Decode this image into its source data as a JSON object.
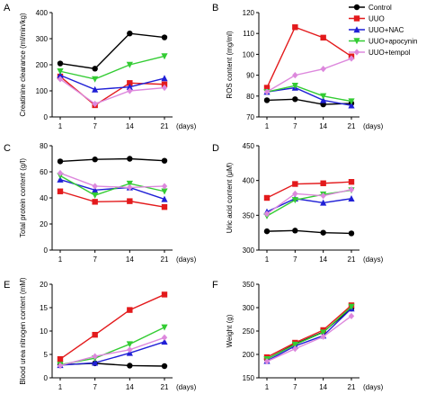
{
  "panel_letters": [
    "A",
    "B",
    "C",
    "D",
    "E",
    "F"
  ],
  "x_unit_label": "(days)",
  "legend": {
    "entries": [
      "Control",
      "UUO",
      "UUO+NAC",
      "UUO+apocynin",
      "UUO+tempol"
    ]
  },
  "series_styles": [
    {
      "name": "Control",
      "color": "#000000",
      "marker": "circle"
    },
    {
      "name": "UUO",
      "color": "#e31a1c",
      "marker": "square"
    },
    {
      "name": "UUO+NAC",
      "color": "#1f1fd6",
      "marker": "triangle-up"
    },
    {
      "name": "UUO+apocynin",
      "color": "#33cc33",
      "marker": "triangle-down"
    },
    {
      "name": "UUO+tempol",
      "color": "#dd88dd",
      "marker": "diamond"
    }
  ],
  "chart_data": [
    {
      "panel": "A",
      "type": "line",
      "x": [
        "1",
        "7",
        "14",
        "21"
      ],
      "ylabel": "Creatinine clearance (ml/min/kg)",
      "ylim": [
        0,
        400
      ],
      "yticks": [
        0,
        100,
        200,
        300,
        400
      ],
      "series": [
        {
          "name": "Control",
          "values": [
            205,
            185,
            320,
            305
          ]
        },
        {
          "name": "UUO",
          "values": [
            155,
            45,
            130,
            125
          ]
        },
        {
          "name": "UUO+NAC",
          "values": [
            160,
            105,
            115,
            148
          ]
        },
        {
          "name": "UUO+apocynin",
          "values": [
            175,
            145,
            200,
            233
          ]
        },
        {
          "name": "UUO+tempol",
          "values": [
            145,
            50,
            100,
            112
          ]
        }
      ]
    },
    {
      "panel": "B",
      "type": "line",
      "x": [
        "1",
        "7",
        "14",
        "21"
      ],
      "ylabel": "ROS content (mg/ml)",
      "ylim": [
        70,
        120
      ],
      "yticks": [
        70,
        80,
        90,
        100,
        110,
        120
      ],
      "series": [
        {
          "name": "Control",
          "values": [
            78,
            78.5,
            76,
            76.5
          ]
        },
        {
          "name": "UUO",
          "values": [
            84,
            113,
            108,
            99
          ]
        },
        {
          "name": "UUO+NAC",
          "values": [
            82,
            84,
            78,
            75.5
          ]
        },
        {
          "name": "UUO+apocynin",
          "values": [
            82,
            85,
            80,
            77.5
          ]
        },
        {
          "name": "UUO+tempol",
          "values": [
            82,
            90,
            93,
            98
          ]
        }
      ]
    },
    {
      "panel": "C",
      "type": "line",
      "x": [
        "1",
        "7",
        "14",
        "21"
      ],
      "ylabel": "Total protein content (g/l)",
      "ylim": [
        0,
        80
      ],
      "yticks": [
        0,
        20,
        40,
        60,
        80
      ],
      "series": [
        {
          "name": "Control",
          "values": [
            68,
            69.5,
            70,
            68.5
          ]
        },
        {
          "name": "UUO",
          "values": [
            45,
            37,
            37.5,
            33
          ]
        },
        {
          "name": "UUO+NAC",
          "values": [
            54,
            46,
            48,
            39
          ]
        },
        {
          "name": "UUO+apocynin",
          "values": [
            57,
            42,
            51,
            45
          ]
        },
        {
          "name": "UUO+tempol",
          "values": [
            59,
            49,
            48,
            49
          ]
        }
      ]
    },
    {
      "panel": "D",
      "type": "line",
      "x": [
        "1",
        "7",
        "14",
        "21"
      ],
      "ylabel": "Uric acid content (μM)",
      "ylim": [
        300,
        450
      ],
      "yticks": [
        300,
        350,
        400,
        450
      ],
      "series": [
        {
          "name": "Control",
          "values": [
            327,
            328,
            325,
            324
          ]
        },
        {
          "name": "UUO",
          "values": [
            375,
            395,
            396,
            398
          ]
        },
        {
          "name": "UUO+NAC",
          "values": [
            355,
            374,
            368,
            374
          ]
        },
        {
          "name": "UUO+apocynin",
          "values": [
            349,
            372,
            380,
            386
          ]
        },
        {
          "name": "UUO+tempol",
          "values": [
            352,
            381,
            378,
            387
          ]
        }
      ]
    },
    {
      "panel": "E",
      "type": "line",
      "x": [
        "1",
        "7",
        "14",
        "21"
      ],
      "ylabel": "Blood urea nitrogen content (mM)",
      "ylim": [
        0,
        20
      ],
      "yticks": [
        0,
        5,
        10,
        15,
        20
      ],
      "series": [
        {
          "name": "Control",
          "values": [
            2.8,
            3.1,
            2.6,
            2.5
          ]
        },
        {
          "name": "UUO",
          "values": [
            4.0,
            9.2,
            14.5,
            17.8
          ]
        },
        {
          "name": "UUO+NAC",
          "values": [
            2.7,
            3.2,
            5.3,
            7.7
          ]
        },
        {
          "name": "UUO+apocynin",
          "values": [
            2.8,
            4.2,
            7.2,
            10.8
          ]
        },
        {
          "name": "UUO+tempol",
          "values": [
            2.6,
            4.6,
            6.0,
            8.6
          ]
        }
      ]
    },
    {
      "panel": "F",
      "type": "line",
      "x": [
        "1",
        "7",
        "14",
        "21"
      ],
      "ylabel": "Weight (g)",
      "ylim": [
        150,
        350
      ],
      "yticks": [
        150,
        200,
        250,
        300,
        350
      ],
      "series": [
        {
          "name": "Control",
          "values": [
            190,
            222,
            248,
            298
          ]
        },
        {
          "name": "UUO",
          "values": [
            194,
            225,
            252,
            305
          ]
        },
        {
          "name": "UUO+NAC",
          "values": [
            186,
            218,
            240,
            298
          ]
        },
        {
          "name": "UUO+apocynin",
          "values": [
            190,
            221,
            247,
            302
          ]
        },
        {
          "name": "UUO+tempol",
          "values": [
            185,
            212,
            238,
            282
          ]
        }
      ]
    }
  ]
}
